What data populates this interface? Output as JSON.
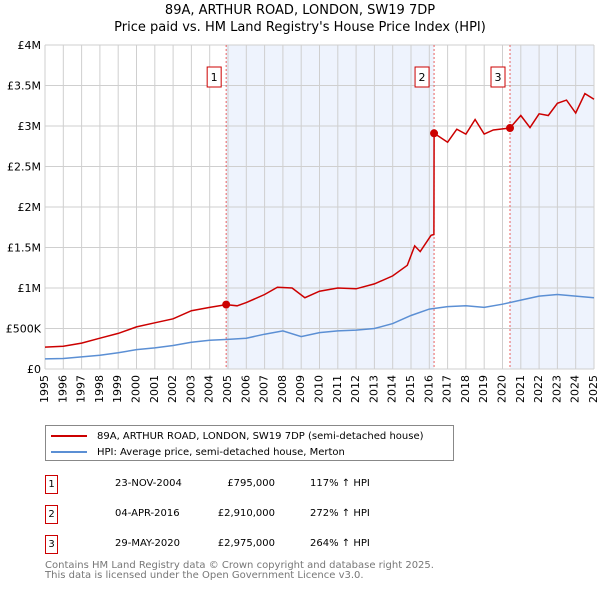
{
  "chart_data": {
    "type": "line",
    "title": "89A, ARTHUR ROAD, LONDON, SW19 7DP",
    "subtitle": "Price paid vs. HM Land Registry's House Price Index (HPI)",
    "xlim": [
      1995,
      2025
    ],
    "ylim": [
      0,
      4000000
    ],
    "x_ticks": [
      "1995",
      "1996",
      "1997",
      "1998",
      "1999",
      "2000",
      "2001",
      "2002",
      "2003",
      "2004",
      "2005",
      "2006",
      "2007",
      "2008",
      "2009",
      "2010",
      "2011",
      "2012",
      "2013",
      "2014",
      "2015",
      "2016",
      "2017",
      "2018",
      "2019",
      "2020",
      "2021",
      "2022",
      "2023",
      "2024",
      "2025"
    ],
    "y_ticks": [
      {
        "v": 0,
        "label": "£0"
      },
      {
        "v": 500000,
        "label": "£500K"
      },
      {
        "v": 1000000,
        "label": "£1M"
      },
      {
        "v": 1500000,
        "label": "£1.5M"
      },
      {
        "v": 2000000,
        "label": "£2M"
      },
      {
        "v": 2500000,
        "label": "£2.5M"
      },
      {
        "v": 3000000,
        "label": "£3M"
      },
      {
        "v": 3500000,
        "label": "£3.5M"
      },
      {
        "v": 4000000,
        "label": "£4M"
      }
    ],
    "grid": true,
    "shaded_ranges": [
      [
        2004.9,
        2016.26
      ],
      [
        2020.41,
        2025
      ]
    ],
    "series": [
      {
        "name": "89A, ARTHUR ROAD, LONDON, SW19 7DP (semi-detached house)",
        "color": "#cc0000",
        "x": [
          1995,
          1996,
          1997,
          1998,
          1999,
          2000,
          2001,
          2002,
          2003,
          2004,
          2004.9,
          2005.5,
          2006,
          2007,
          2007.7,
          2008.5,
          2009.2,
          2010,
          2011,
          2012,
          2013,
          2014,
          2014.8,
          2015.2,
          2015.5,
          2016.1,
          2016.25,
          2016.26,
          2017,
          2017.5,
          2018,
          2018.5,
          2019,
          2019.5,
          2020.41,
          2021,
          2021.5,
          2022,
          2022.5,
          2023,
          2023.5,
          2024,
          2024.5,
          2025
        ],
        "y": [
          270000,
          280000,
          320000,
          380000,
          440000,
          520000,
          570000,
          620000,
          720000,
          760000,
          795000,
          780000,
          820000,
          920000,
          1010000,
          1000000,
          880000,
          960000,
          1000000,
          990000,
          1050000,
          1150000,
          1280000,
          1520000,
          1450000,
          1650000,
          1660000,
          2910000,
          2800000,
          2960000,
          2900000,
          3080000,
          2900000,
          2950000,
          2975000,
          3130000,
          2980000,
          3150000,
          3130000,
          3280000,
          3320000,
          3160000,
          3400000,
          3330000
        ]
      },
      {
        "name": "HPI: Average price, semi-detached house, Merton",
        "color": "#5b8fd4",
        "x": [
          1995,
          1996,
          1997,
          1998,
          1999,
          2000,
          2001,
          2002,
          2003,
          2004,
          2005,
          2006,
          2007,
          2008,
          2009,
          2010,
          2011,
          2012,
          2013,
          2014,
          2015,
          2016,
          2017,
          2018,
          2019,
          2020,
          2021,
          2022,
          2023,
          2024,
          2025
        ],
        "y": [
          125000,
          130000,
          150000,
          170000,
          200000,
          240000,
          260000,
          290000,
          330000,
          355000,
          365000,
          380000,
          430000,
          470000,
          400000,
          450000,
          470000,
          480000,
          500000,
          560000,
          660000,
          740000,
          770000,
          780000,
          760000,
          800000,
          850000,
          900000,
          920000,
          900000,
          880000
        ]
      }
    ],
    "sales": [
      {
        "label": "1",
        "x": 2004.9,
        "y": 795000,
        "date": "23-NOV-2004",
        "price": "£795,000",
        "hpi": "117% ↑ HPI"
      },
      {
        "label": "2",
        "x": 2016.26,
        "y": 2910000,
        "date": "04-APR-2016",
        "price": "£2,910,000",
        "hpi": "272% ↑ HPI"
      },
      {
        "label": "3",
        "x": 2020.41,
        "y": 2975000,
        "date": "29-MAY-2020",
        "price": "£2,975,000",
        "hpi": "264% ↑ HPI"
      }
    ],
    "legend_placement": "below"
  },
  "footer": {
    "line1": "Contains HM Land Registry data © Crown copyright and database right 2025.",
    "line2": "This data is licensed under the Open Government Licence v3.0."
  }
}
